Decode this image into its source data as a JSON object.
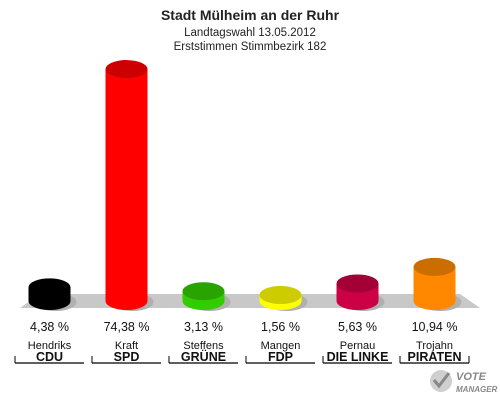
{
  "header": {
    "title": "Stadt Mülheim an der Ruhr",
    "subtitle": "Landtagswahl 13.05.2012",
    "subtitle2": "Erststimmen Stimmbezirk 182"
  },
  "watermark": {
    "line1": "VOTE",
    "line2": "MANAGER"
  },
  "chart_data": {
    "type": "bar",
    "title": "Stadt Mülheim an der Ruhr",
    "subtitle": "Landtagswahl 13.05.2012 / Erststimmen Stimmbezirk 182",
    "categories": [
      "CDU",
      "SPD",
      "GRÜNE",
      "FDP",
      "DIE LINKE",
      "PIRATEN"
    ],
    "candidates": [
      "Hendriks",
      "Kraft",
      "Steffens",
      "Mangen",
      "Pernau",
      "Trojahn"
    ],
    "values": [
      4.38,
      74.38,
      3.13,
      1.56,
      5.63,
      10.94
    ],
    "labels": [
      "4,38 %",
      "74,38 %",
      "3,13 %",
      "1,56 %",
      "5,63 %",
      "10,94 %"
    ],
    "colors": [
      "#000000",
      "#ff0000",
      "#33cc00",
      "#ffff00",
      "#cc0044",
      "#ff8800"
    ],
    "ylim": [
      0,
      80
    ],
    "grid": false,
    "legend": "none"
  }
}
